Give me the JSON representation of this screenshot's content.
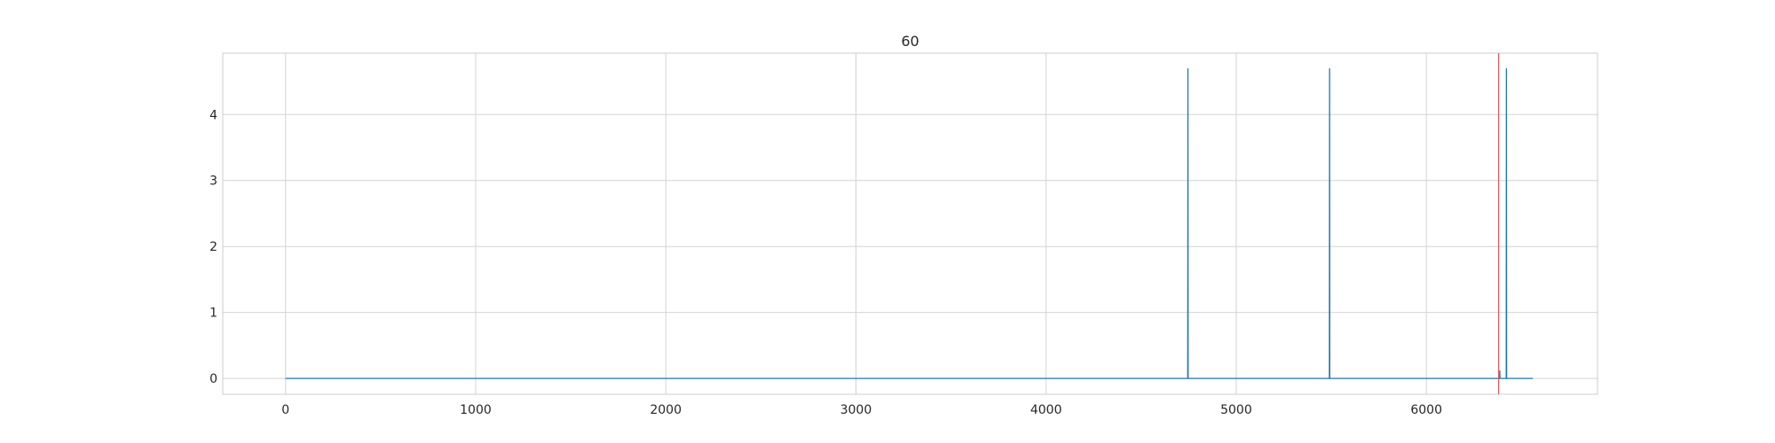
{
  "chart_data": {
    "type": "line",
    "title": "60",
    "xlabel": "",
    "ylabel": "",
    "xlim": [
      -330,
      6900
    ],
    "ylim": [
      -0.24,
      4.93
    ],
    "x_ticks": [
      0,
      1000,
      2000,
      3000,
      4000,
      5000,
      6000
    ],
    "y_ticks": [
      0,
      1,
      2,
      3,
      4
    ],
    "grid": true,
    "series": [
      {
        "color": "#1f77b4",
        "values_description_free": true,
        "points": [
          [
            0,
            0
          ],
          [
            4745,
            0
          ],
          [
            4746,
            4.7
          ],
          [
            4747,
            0
          ],
          [
            5490,
            0
          ],
          [
            5491,
            4.7
          ],
          [
            5492,
            0
          ],
          [
            6385,
            0
          ],
          [
            6386,
            0.12
          ],
          [
            6387,
            0
          ],
          [
            6420,
            0
          ],
          [
            6421,
            4.7
          ],
          [
            6422,
            0
          ],
          [
            6560,
            0
          ]
        ]
      }
    ],
    "vertical_lines": [
      {
        "x": 6380,
        "color": "#e8555a"
      }
    ]
  }
}
